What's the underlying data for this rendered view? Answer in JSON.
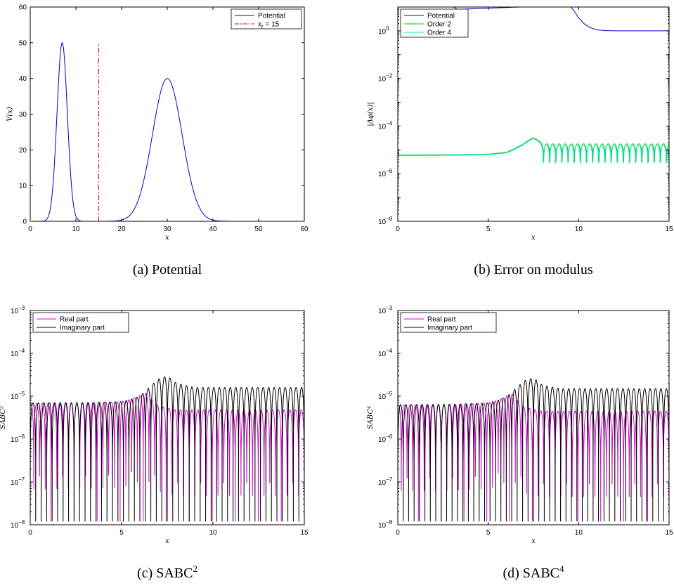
{
  "chart_data": [
    {
      "type": "line",
      "caption": "(a) Potential",
      "xlabel": "x",
      "ylabel": "V(x)",
      "xlim": [
        0,
        60
      ],
      "ylim": [
        0,
        60
      ],
      "yscale": "linear",
      "xticks": [
        "0",
        "10",
        "20",
        "30",
        "40",
        "50",
        "60"
      ],
      "yticks": [
        "0",
        "10",
        "20",
        "30",
        "40",
        "50",
        "60"
      ],
      "legend": "top-right",
      "series": [
        {
          "name": "Potential",
          "color": "#0000cc",
          "x": [
            0,
            2,
            4,
            5,
            6,
            6.5,
            7,
            7.5,
            8,
            9,
            10,
            11,
            12,
            15,
            18,
            20,
            22,
            24,
            26,
            28,
            29,
            30,
            31,
            32,
            34,
            36,
            38,
            40,
            42,
            45,
            50,
            60
          ],
          "y": [
            0,
            0.3,
            5,
            17,
            38,
            47,
            50,
            47,
            38,
            17,
            5,
            1,
            0,
            0,
            0,
            0.4,
            2.5,
            8.5,
            20,
            34,
            38.5,
            40,
            38.5,
            34,
            20,
            8.5,
            2.5,
            0.4,
            0,
            0,
            0,
            0
          ]
        },
        {
          "name": "x_r = 15",
          "color": "#dd0000",
          "dash": "dashdot",
          "x": [
            15,
            15
          ],
          "y": [
            0,
            50
          ]
        }
      ]
    },
    {
      "type": "line",
      "caption": "(b) Error on modulus",
      "xlabel": "x",
      "ylabel": "|Δφ(x)|",
      "xlim": [
        0,
        15
      ],
      "ylim": [
        1e-08,
        10
      ],
      "yscale": "log",
      "xticks": [
        "0",
        "5",
        "10",
        "15"
      ],
      "legend": "top-left",
      "series": [
        {
          "name": "Potential",
          "color": "#0000cc",
          "x": [
            3.0,
            3.3,
            9.5,
            9.8,
            10.0,
            10.3,
            10.6,
            11.0,
            11.5,
            12,
            13,
            15
          ],
          "y": [
            11,
            8,
            12,
            6,
            3.5,
            2,
            1.4,
            1.1,
            1.02,
            1.0,
            1.0,
            1.0
          ]
        },
        {
          "name": "Order 2",
          "color": "#00cc00",
          "x": [
            0,
            2,
            4,
            5,
            6,
            6.5,
            7,
            7.3,
            7.5,
            7.7,
            8,
            15
          ],
          "y": [
            6.2e-06,
            6.3e-06,
            6.5e-06,
            6.8e-06,
            8e-06,
            1.2e-05,
            1.9e-05,
            2.7e-05,
            3.2e-05,
            2.7e-05,
            1.8e-05,
            1.8e-05
          ]
        },
        {
          "name": "Order 4",
          "color": "#00e6cc",
          "x": [
            0,
            2,
            4,
            5,
            6,
            6.5,
            7,
            7.3,
            7.5,
            7.7,
            8,
            15
          ],
          "y": [
            5.9e-06,
            6e-06,
            6.2e-06,
            6.5e-06,
            7.6e-06,
            1.1e-05,
            1.8e-05,
            2.5e-05,
            3e-05,
            2.5e-05,
            1.6e-05,
            1.6e-05
          ]
        }
      ]
    },
    {
      "type": "line",
      "caption": "(c) SABC²",
      "xlabel": "x",
      "ylabel": "SABC²",
      "xlim": [
        0,
        15
      ],
      "ylim": [
        1e-08,
        0.001
      ],
      "yscale": "log",
      "xticks": [
        "0",
        "5",
        "10",
        "15"
      ],
      "legend": "top-left",
      "series": [
        {
          "name": "Real part",
          "color": "#dd00dd",
          "x": [
            0,
            3,
            5,
            5.5,
            6,
            6.3,
            6.6,
            7,
            8,
            15
          ],
          "y": [
            6.8e-06,
            6.9e-06,
            7.5e-06,
            8.5e-06,
            1.05e-05,
            1.2e-05,
            9e-06,
            6e-06,
            4.8e-06,
            4.8e-06
          ]
        },
        {
          "name": "Imaginary part",
          "color": "#000000",
          "x": [
            0,
            3,
            4,
            5,
            5.5,
            6,
            6.5,
            7,
            7.5,
            8,
            9,
            15
          ],
          "y": [
            7e-06,
            7.1e-06,
            7.3e-06,
            7.5e-06,
            8.5e-06,
            1e-05,
            1.6e-05,
            2.5e-05,
            3e-05,
            2e-05,
            1.6e-05,
            1.6e-05
          ]
        }
      ]
    },
    {
      "type": "line",
      "caption": "(d) SABC⁴",
      "xlabel": "x",
      "ylabel": "SABC⁴",
      "xlim": [
        0,
        15
      ],
      "ylim": [
        1e-08,
        0.001
      ],
      "yscale": "log",
      "xticks": [
        "0",
        "5",
        "10",
        "15"
      ],
      "legend": "top-left",
      "series": [
        {
          "name": "Real part",
          "color": "#dd00dd",
          "x": [
            0,
            3,
            5,
            5.5,
            6,
            6.3,
            6.6,
            7,
            8,
            15
          ],
          "y": [
            6.2e-06,
            6.3e-06,
            7e-06,
            8e-06,
            1e-05,
            1.15e-05,
            8.5e-06,
            5.5e-06,
            4.5e-06,
            4.5e-06
          ]
        },
        {
          "name": "Imaginary part",
          "color": "#000000",
          "x": [
            0,
            3,
            4,
            5,
            5.5,
            6,
            6.5,
            7,
            7.5,
            8,
            9,
            15
          ],
          "y": [
            6.4e-06,
            6.5e-06,
            6.7e-06,
            7e-06,
            8e-06,
            9.5e-06,
            1.5e-05,
            2.3e-05,
            2.7e-05,
            1.8e-05,
            1.5e-05,
            1.5e-05
          ]
        }
      ]
    }
  ]
}
